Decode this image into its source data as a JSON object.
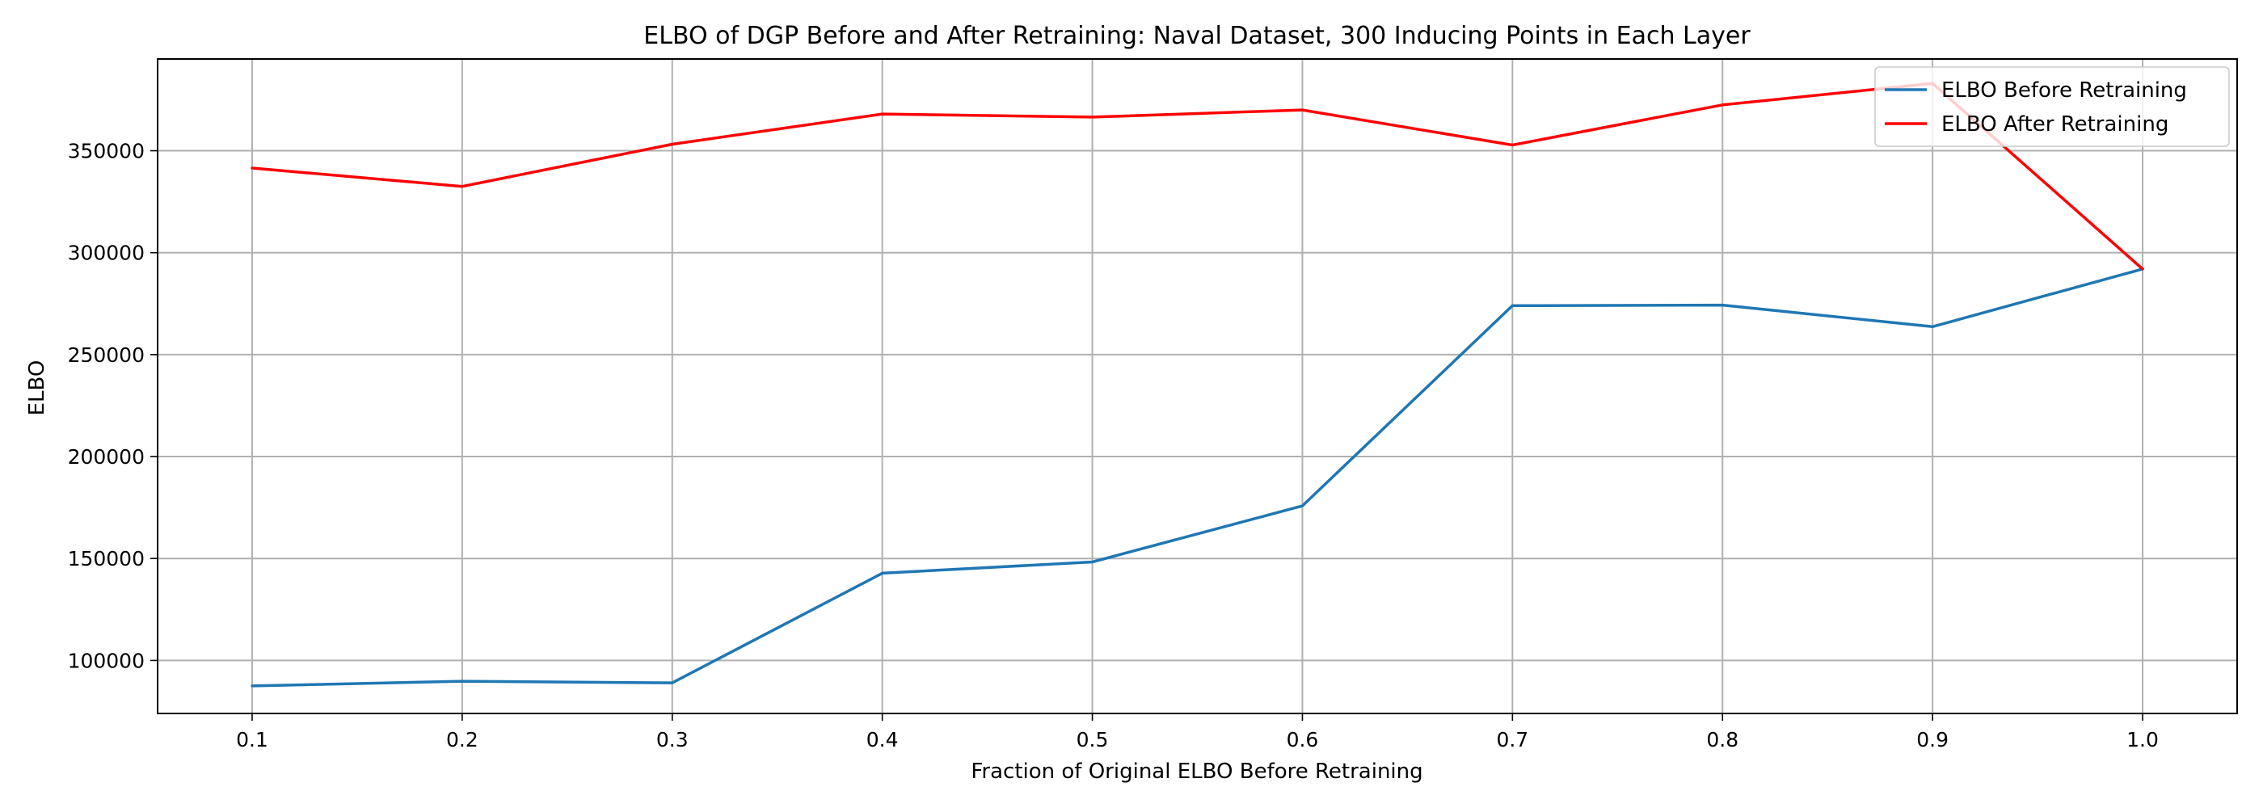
{
  "chart_data": {
    "type": "line",
    "title": "ELBO of DGP Before and After Retraining: Naval Dataset, 300 Inducing Points in Each Layer",
    "xlabel": "Fraction of Original ELBO Before Retraining",
    "ylabel": "ELBO",
    "x": [
      0.1,
      0.2,
      0.3,
      0.4,
      0.5,
      0.6,
      0.7,
      0.8,
      0.9,
      1.0
    ],
    "x_ticks": [
      "0.1",
      "0.2",
      "0.3",
      "0.4",
      "0.5",
      "0.6",
      "0.7",
      "0.8",
      "0.9",
      "1.0"
    ],
    "y_ticks": [
      100000,
      150000,
      200000,
      250000,
      300000,
      350000
    ],
    "y_tick_labels": [
      "100000",
      "150000",
      "200000",
      "250000",
      "300000",
      "350000"
    ],
    "xlim": [
      0.055,
      1.045
    ],
    "ylim": [
      74000,
      395000
    ],
    "grid": true,
    "legend_position": "top-right",
    "series": [
      {
        "name": "ELBO Before Retraining",
        "color": "#1f77b4",
        "values": [
          87500,
          89800,
          89000,
          142800,
          148300,
          175800,
          274000,
          274300,
          263700,
          292000
        ]
      },
      {
        "name": "ELBO After Retraining",
        "color": "#ff0000",
        "values": [
          341500,
          332500,
          353200,
          368000,
          366500,
          370000,
          352800,
          372500,
          383000,
          292000
        ]
      }
    ]
  }
}
